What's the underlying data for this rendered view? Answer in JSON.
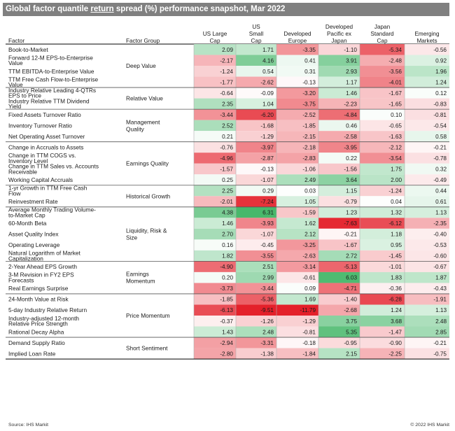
{
  "chart_data": {
    "type": "table",
    "title": "Global factor quantile return spread (%) performance snapshot, Mar 2022",
    "title_parts": [
      "Global factor quantile ",
      "return",
      " spread (%) performance snapshot, Mar 2022"
    ],
    "header_factor": "Factor",
    "header_group": "Factor Group",
    "columns": [
      [
        "US Large",
        "Cap"
      ],
      [
        "US",
        "Small",
        "Cap"
      ],
      [
        "Developed",
        "Europe"
      ],
      [
        "Developed",
        "Pacific ex",
        "Japan"
      ],
      [
        "Japan",
        "Standard",
        "Cap"
      ],
      [
        "Emerging",
        "Markets"
      ]
    ],
    "rows": [
      {
        "factor": [
          "Book-to-Market"
        ],
        "values": [
          2.09,
          1.71,
          -3.35,
          -1.1,
          -5.34,
          -0.56
        ]
      },
      {
        "factor": [
          "Forward 12-M EPS-to-Enterprise",
          "Value"
        ],
        "values": [
          -2.17,
          4.16,
          0.41,
          3.91,
          -2.48,
          0.92
        ]
      },
      {
        "factor": [
          "TTM EBITDA-to-Enterprise Value"
        ],
        "values": [
          -1.24,
          0.54,
          0.31,
          2.93,
          -3.56,
          1.96
        ]
      },
      {
        "factor": [
          "TTM Free Cash Flow-to-Enterprise",
          "Value"
        ],
        "values": [
          -1.77,
          -2.62,
          -0.13,
          1.17,
          -4.01,
          1.24
        ]
      },
      {
        "factor": [
          "Industry Relative Leading 4-QTRs",
          "EPS to Price"
        ],
        "values": [
          -0.64,
          -0.09,
          -3.2,
          1.46,
          -1.67,
          0.12
        ]
      },
      {
        "factor": [
          "Industry Relative TTM Dividend",
          "Yield"
        ],
        "values": [
          2.35,
          1.04,
          -3.75,
          -2.23,
          -1.65,
          -0.83
        ]
      },
      {
        "factor": [
          "Fixed Assets Turnover Ratio"
        ],
        "values": [
          -3.44,
          -6.2,
          -2.52,
          -4.84,
          0.1,
          -0.81
        ]
      },
      {
        "factor": [
          "Inventory Turnover Ratio"
        ],
        "values": [
          2.52,
          -1.68,
          -1.85,
          0.46,
          -0.65,
          -0.54
        ]
      },
      {
        "factor": [
          "Net Operating Asset Turnover"
        ],
        "values": [
          0.21,
          -1.29,
          -2.15,
          -2.58,
          -1.63,
          0.58
        ]
      },
      {
        "factor": [
          "Change in Accruals to Assets"
        ],
        "values": [
          -0.76,
          -3.97,
          -2.18,
          -3.95,
          -2.12,
          -0.21
        ]
      },
      {
        "factor": [
          "Change in TTM COGS vs.",
          "Inventory Level"
        ],
        "values": [
          -4.96,
          -2.87,
          -2.83,
          0.22,
          -3.54,
          -0.78
        ]
      },
      {
        "factor": [
          "Change in TTM Sales vs. Accounts",
          "Receivable"
        ],
        "values": [
          -1.57,
          -0.13,
          -1.06,
          -1.56,
          1.75,
          0.32
        ]
      },
      {
        "factor": [
          "Working Capital Accruals"
        ],
        "values": [
          0.25,
          -1.07,
          2.49,
          3.64,
          2.0,
          -0.49
        ]
      },
      {
        "factor": [
          "1-yr Growth in TTM Free Cash",
          "Flow"
        ],
        "values": [
          2.25,
          0.29,
          0.03,
          1.15,
          -1.24,
          0.44
        ]
      },
      {
        "factor": [
          "Reinvestment Rate"
        ],
        "values": [
          -2.01,
          -7.24,
          1.05,
          -0.79,
          0.04,
          0.61
        ]
      },
      {
        "factor": [
          "Average Monthly Trading Volume-",
          "to-Market Cap"
        ],
        "values": [
          4.38,
          6.31,
          -1.59,
          1.23,
          1.32,
          1.13
        ]
      },
      {
        "factor": [
          "60-Month Beta"
        ],
        "values": [
          1.46,
          -3.93,
          1.62,
          -7.63,
          -6.12,
          -2.35
        ]
      },
      {
        "factor": [
          "Asset Quality Index"
        ],
        "values": [
          2.7,
          -1.07,
          2.12,
          -0.21,
          1.18,
          -0.4
        ]
      },
      {
        "factor": [
          "Operating Leverage"
        ],
        "values": [
          0.16,
          -0.45,
          -3.25,
          -1.67,
          0.95,
          -0.53
        ]
      },
      {
        "factor": [
          "Natural Logarithm of Market",
          "Capitalization"
        ],
        "values": [
          1.82,
          -3.55,
          -2.63,
          2.72,
          -1.45,
          -0.6
        ]
      },
      {
        "factor": [
          "2-Year Ahead EPS Growth"
        ],
        "values": [
          -4.9,
          2.51,
          -3.14,
          -5.13,
          -1.01,
          -0.67
        ]
      },
      {
        "factor": [
          "3-M Revision in FY2 EPS",
          "Forecasts"
        ],
        "values": [
          0.2,
          2.99,
          -0.61,
          6.03,
          1.83,
          1.87
        ]
      },
      {
        "factor": [
          "Real Earnings Surprise"
        ],
        "values": [
          -3.73,
          -3.44,
          0.09,
          -4.71,
          -0.36,
          -0.43
        ]
      },
      {
        "factor": [
          "24-Month Value at Risk"
        ],
        "values": [
          -1.85,
          -5.36,
          1.69,
          -1.4,
          -6.28,
          -1.91
        ]
      },
      {
        "factor": [
          "5-day Industry Relative Return"
        ],
        "values": [
          -6.13,
          -9.51,
          -11.79,
          -2.68,
          1.24,
          1.13
        ]
      },
      {
        "factor": [
          "Industry-adjusted 12-month",
          "Relative Price Strength"
        ],
        "values": [
          -0.37,
          -1.26,
          -1.29,
          3.75,
          3.68,
          2.48
        ]
      },
      {
        "factor": [
          "Rational Decay Alpha"
        ],
        "values": [
          1.43,
          2.48,
          -0.81,
          5.35,
          -1.47,
          2.85
        ]
      },
      {
        "factor": [
          "Demand Supply Ratio"
        ],
        "values": [
          -2.94,
          -3.31,
          -0.18,
          -0.95,
          -0.9,
          -0.21
        ]
      },
      {
        "factor": [
          "Implied Loan Rate"
        ],
        "values": [
          -2.8,
          -1.38,
          -1.84,
          2.15,
          -2.25,
          -0.75
        ]
      }
    ],
    "groups": [
      {
        "label": [
          "Deep Value"
        ],
        "start": 0,
        "end": 3
      },
      {
        "label": [
          "Relative Value"
        ],
        "start": 4,
        "end": 5
      },
      {
        "label": [
          "Management",
          "Quality"
        ],
        "start": 6,
        "end": 8
      },
      {
        "label": [
          "Earnings Quality"
        ],
        "start": 9,
        "end": 12
      },
      {
        "label": [
          "Historical Growth"
        ],
        "start": 13,
        "end": 14
      },
      {
        "label": [
          "Liquidity, Risk &",
          "Size"
        ],
        "start": 15,
        "end": 19
      },
      {
        "label": [
          "Earnings",
          "Momentum"
        ],
        "start": 20,
        "end": 22
      },
      {
        "label": [
          "Price Momentum"
        ],
        "start": 23,
        "end": 26
      },
      {
        "label": [
          "Short Sentiment"
        ],
        "start": 27,
        "end": 28
      }
    ],
    "color_scale": {
      "positive": "#1fa84a",
      "negative": "#e4202a",
      "neutral": "#ffffff",
      "max_abs": 8
    },
    "source": "Source: IHS Markit",
    "copyright": "© 2022 IHS Markit"
  }
}
